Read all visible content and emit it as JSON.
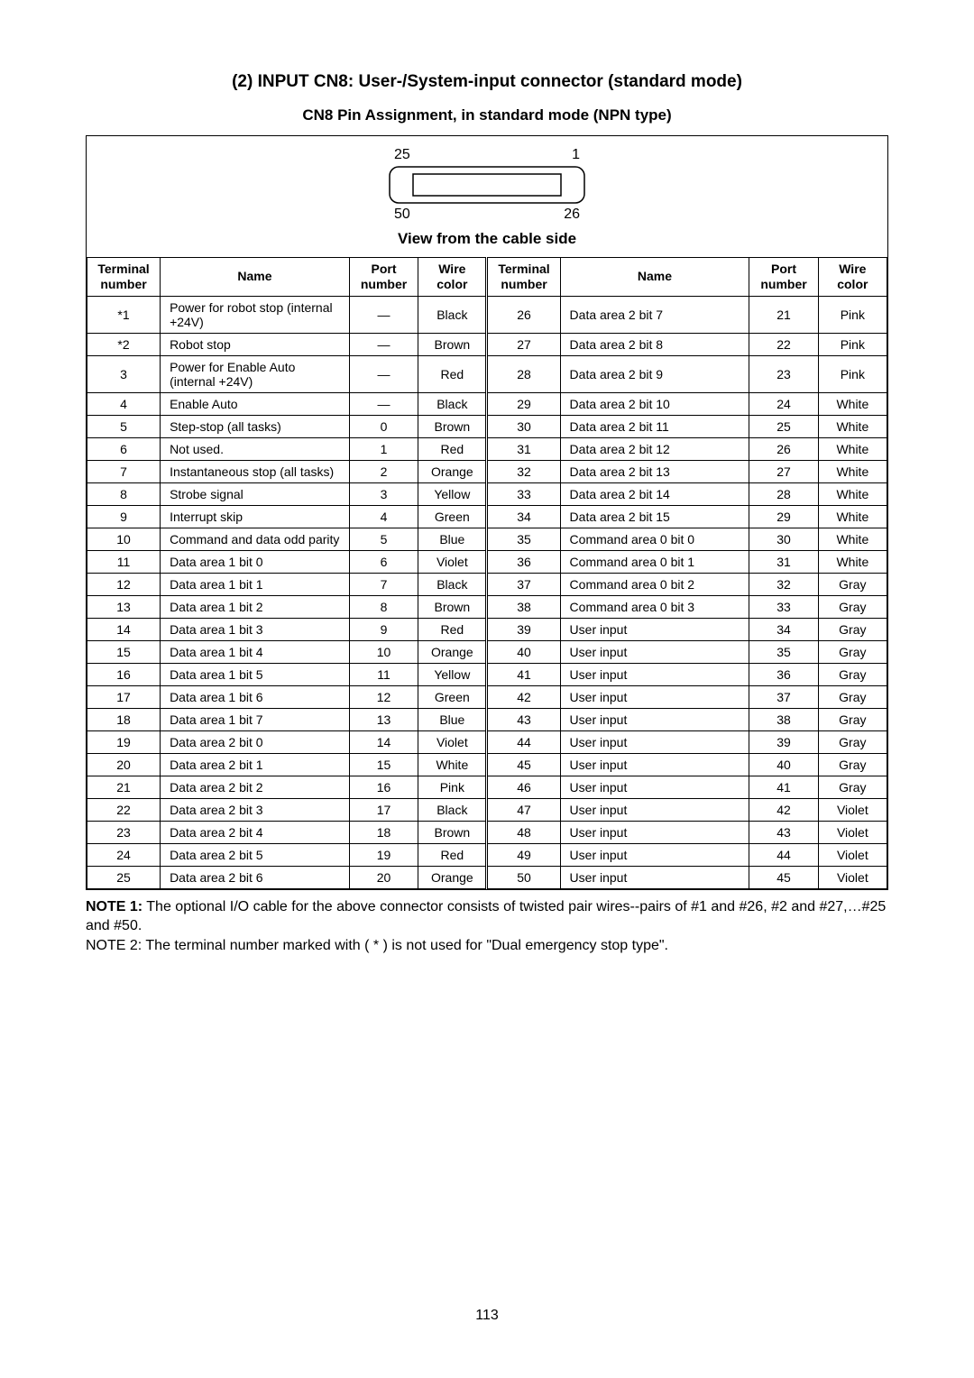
{
  "title": "(2) INPUT CN8: User-/System-input connector (standard mode)",
  "subtitle": "CN8 Pin Assignment, in standard mode (NPN type)",
  "connector": {
    "top_left": "25",
    "top_right": "1",
    "bottom_left": "50",
    "bottom_right": "26",
    "view_label": "View from the cable side"
  },
  "headers": {
    "term": "Terminal number",
    "name": "Name",
    "port": "Port number",
    "wire": "Wire color"
  },
  "rows": [
    {
      "l": {
        "t": "*1",
        "n": "Power for robot stop (internal +24V)",
        "p": "—",
        "w": "Black"
      },
      "r": {
        "t": "26",
        "n": "Data area 2 bit 7",
        "p": "21",
        "w": "Pink"
      }
    },
    {
      "l": {
        "t": "*2",
        "n": "Robot stop",
        "p": "—",
        "w": "Brown"
      },
      "r": {
        "t": "27",
        "n": "Data area 2 bit 8",
        "p": "22",
        "w": "Pink"
      }
    },
    {
      "l": {
        "t": "3",
        "n": "Power for Enable Auto (internal +24V)",
        "p": "—",
        "w": "Red"
      },
      "r": {
        "t": "28",
        "n": "Data area 2 bit 9",
        "p": "23",
        "w": "Pink"
      }
    },
    {
      "l": {
        "t": "4",
        "n": "Enable Auto",
        "p": "—",
        "w": "Black"
      },
      "r": {
        "t": "29",
        "n": "Data area 2 bit 10",
        "p": "24",
        "w": "White"
      }
    },
    {
      "l": {
        "t": "5",
        "n": "Step-stop (all tasks)",
        "p": "0",
        "w": "Brown"
      },
      "r": {
        "t": "30",
        "n": "Data area 2 bit 11",
        "p": "25",
        "w": "White"
      }
    },
    {
      "l": {
        "t": "6",
        "n": "Not used.",
        "p": "1",
        "w": "Red"
      },
      "r": {
        "t": "31",
        "n": "Data area 2 bit 12",
        "p": "26",
        "w": "White"
      }
    },
    {
      "l": {
        "t": "7",
        "n": "Instantaneous stop (all tasks)",
        "p": "2",
        "w": "Orange"
      },
      "r": {
        "t": "32",
        "n": "Data area 2 bit 13",
        "p": "27",
        "w": "White"
      }
    },
    {
      "l": {
        "t": "8",
        "n": "Strobe signal",
        "p": "3",
        "w": "Yellow"
      },
      "r": {
        "t": "33",
        "n": "Data area 2 bit 14",
        "p": "28",
        "w": "White"
      }
    },
    {
      "l": {
        "t": "9",
        "n": "Interrupt skip",
        "p": "4",
        "w": "Green"
      },
      "r": {
        "t": "34",
        "n": "Data area 2 bit 15",
        "p": "29",
        "w": "White"
      }
    },
    {
      "l": {
        "t": "10",
        "n": "Command and data odd parity",
        "p": "5",
        "w": "Blue"
      },
      "r": {
        "t": "35",
        "n": "Command area 0 bit 0",
        "p": "30",
        "w": "White"
      }
    },
    {
      "l": {
        "t": "11",
        "n": "Data area 1 bit 0",
        "p": "6",
        "w": "Violet"
      },
      "r": {
        "t": "36",
        "n": "Command area 0 bit 1",
        "p": "31",
        "w": "White"
      }
    },
    {
      "l": {
        "t": "12",
        "n": "Data area 1 bit 1",
        "p": "7",
        "w": "Black"
      },
      "r": {
        "t": "37",
        "n": "Command area 0 bit 2",
        "p": "32",
        "w": "Gray"
      }
    },
    {
      "l": {
        "t": "13",
        "n": "Data area 1 bit 2",
        "p": "8",
        "w": "Brown"
      },
      "r": {
        "t": "38",
        "n": "Command area 0 bit 3",
        "p": "33",
        "w": "Gray"
      }
    },
    {
      "l": {
        "t": "14",
        "n": "Data area 1 bit 3",
        "p": "9",
        "w": "Red"
      },
      "r": {
        "t": "39",
        "n": "User input",
        "p": "34",
        "w": "Gray"
      }
    },
    {
      "l": {
        "t": "15",
        "n": "Data area 1 bit 4",
        "p": "10",
        "w": "Orange"
      },
      "r": {
        "t": "40",
        "n": "User input",
        "p": "35",
        "w": "Gray"
      }
    },
    {
      "l": {
        "t": "16",
        "n": "Data area 1 bit 5",
        "p": "11",
        "w": "Yellow"
      },
      "r": {
        "t": "41",
        "n": "User input",
        "p": "36",
        "w": "Gray"
      }
    },
    {
      "l": {
        "t": "17",
        "n": "Data area 1 bit 6",
        "p": "12",
        "w": "Green"
      },
      "r": {
        "t": "42",
        "n": "User input",
        "p": "37",
        "w": "Gray"
      }
    },
    {
      "l": {
        "t": "18",
        "n": "Data area 1 bit 7",
        "p": "13",
        "w": "Blue"
      },
      "r": {
        "t": "43",
        "n": "User input",
        "p": "38",
        "w": "Gray"
      }
    },
    {
      "l": {
        "t": "19",
        "n": "Data area 2 bit 0",
        "p": "14",
        "w": "Violet"
      },
      "r": {
        "t": "44",
        "n": "User input",
        "p": "39",
        "w": "Gray"
      }
    },
    {
      "l": {
        "t": "20",
        "n": "Data area 2 bit 1",
        "p": "15",
        "w": "White"
      },
      "r": {
        "t": "45",
        "n": "User input",
        "p": "40",
        "w": "Gray"
      }
    },
    {
      "l": {
        "t": "21",
        "n": "Data area 2 bit 2",
        "p": "16",
        "w": "Pink"
      },
      "r": {
        "t": "46",
        "n": "User input",
        "p": "41",
        "w": "Gray"
      }
    },
    {
      "l": {
        "t": "22",
        "n": "Data area 2 bit 3",
        "p": "17",
        "w": "Black"
      },
      "r": {
        "t": "47",
        "n": "User input",
        "p": "42",
        "w": "Violet"
      }
    },
    {
      "l": {
        "t": "23",
        "n": "Data area 2 bit 4",
        "p": "18",
        "w": "Brown"
      },
      "r": {
        "t": "48",
        "n": "User input",
        "p": "43",
        "w": "Violet"
      }
    },
    {
      "l": {
        "t": "24",
        "n": "Data area 2 bit 5",
        "p": "19",
        "w": "Red"
      },
      "r": {
        "t": "49",
        "n": "User input",
        "p": "44",
        "w": "Violet"
      }
    },
    {
      "l": {
        "t": "25",
        "n": "Data area 2 bit 6",
        "p": "20",
        "w": "Orange"
      },
      "r": {
        "t": "50",
        "n": "User input",
        "p": "45",
        "w": "Violet"
      }
    }
  ],
  "notes": {
    "n1_label": "NOTE 1:",
    "n1_text": " The optional I/O cable for the above connector consists of twisted pair wires--pairs of #1 and #26, #2 and #27,…#25 and #50.",
    "n2": "NOTE 2: The terminal number marked with ( * ) is not used for \"Dual emergency stop type\"."
  },
  "page_number": "113"
}
